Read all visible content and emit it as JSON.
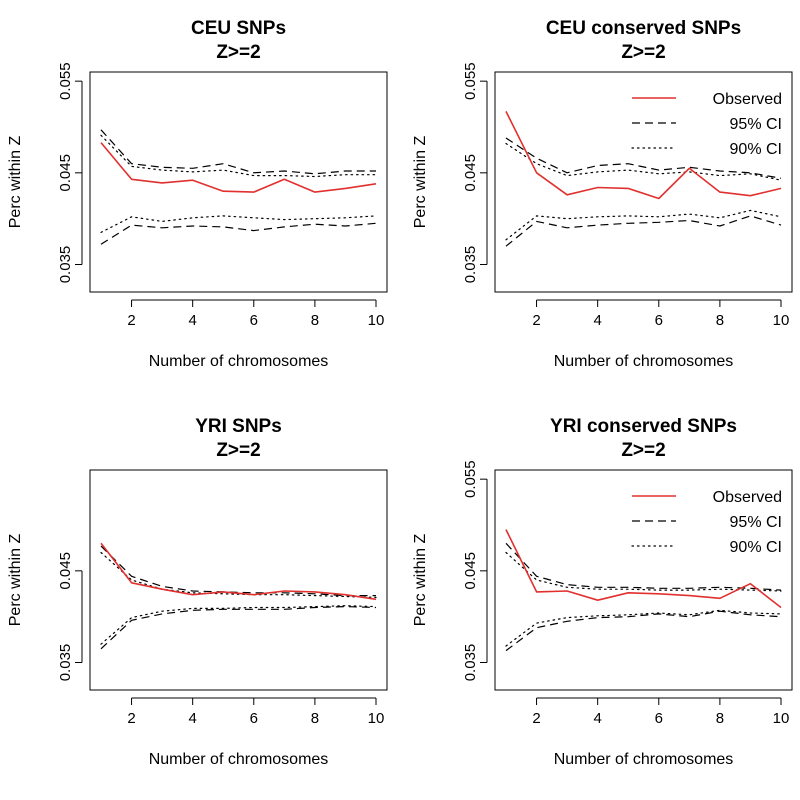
{
  "chart_data": [
    {
      "type": "line",
      "title": "CEU SNPs",
      "subtitle": "Z>=2",
      "xlabel": "Number of chromosomes",
      "ylabel": "Perc within Z",
      "xlim": [
        1,
        10
      ],
      "ylim": [
        0.032,
        0.056
      ],
      "xticks": [
        2,
        4,
        6,
        8,
        10
      ],
      "yticks": [
        0.035,
        0.045,
        0.055
      ],
      "x": [
        1,
        2,
        3,
        4,
        5,
        6,
        7,
        8,
        9,
        10
      ],
      "legend": null,
      "series": [
        {
          "name": "Observed",
          "color": "#e0312f",
          "style": "solid",
          "values": [
            0.0483,
            0.0443,
            0.0439,
            0.0442,
            0.043,
            0.0429,
            0.0443,
            0.0429,
            0.0433,
            0.0438
          ]
        },
        {
          "name": "95% CI",
          "color": "#000000",
          "style": "dashed",
          "values": [
            0.0497,
            0.046,
            0.0456,
            0.0455,
            0.046,
            0.045,
            0.0452,
            0.0449,
            0.0452,
            0.0452
          ]
        },
        {
          "name": "95% CI",
          "color": "#000000",
          "style": "dashed",
          "values": [
            0.0372,
            0.0393,
            0.039,
            0.0392,
            0.0391,
            0.0387,
            0.0391,
            0.0394,
            0.0392,
            0.0395
          ]
        },
        {
          "name": "90% CI",
          "color": "#000000",
          "style": "dotted",
          "values": [
            0.0491,
            0.0457,
            0.0453,
            0.0451,
            0.0453,
            0.0447,
            0.0447,
            0.0446,
            0.0448,
            0.0448
          ]
        },
        {
          "name": "90% CI",
          "color": "#000000",
          "style": "dotted",
          "values": [
            0.0385,
            0.0402,
            0.0397,
            0.0401,
            0.0403,
            0.0401,
            0.0399,
            0.04,
            0.0401,
            0.0403
          ]
        }
      ]
    },
    {
      "type": "line",
      "title": "CEU conserved SNPs",
      "subtitle": "Z>=2",
      "xlabel": "Number of chromosomes",
      "ylabel": "Perc within Z",
      "xlim": [
        1,
        10
      ],
      "ylim": [
        0.032,
        0.056
      ],
      "xticks": [
        2,
        4,
        6,
        8,
        10
      ],
      "yticks": [
        0.035,
        0.045,
        0.055
      ],
      "x": [
        1,
        2,
        3,
        4,
        5,
        6,
        7,
        8,
        9,
        10
      ],
      "legend": {
        "position": "top-right",
        "entries": [
          {
            "label": "Observed",
            "color": "#e0312f",
            "style": "solid"
          },
          {
            "label": "95% CI",
            "color": "#000000",
            "style": "dashed"
          },
          {
            "label": "90% CI",
            "color": "#000000",
            "style": "dotted"
          }
        ]
      },
      "series": [
        {
          "name": "Observed",
          "color": "#e0312f",
          "style": "solid",
          "values": [
            0.0517,
            0.045,
            0.0426,
            0.0434,
            0.0433,
            0.0422,
            0.0455,
            0.0429,
            0.0425,
            0.0433
          ]
        },
        {
          "name": "95% CI",
          "color": "#000000",
          "style": "dashed",
          "values": [
            0.0488,
            0.0466,
            0.045,
            0.0458,
            0.046,
            0.0453,
            0.0456,
            0.0452,
            0.045,
            0.0444
          ]
        },
        {
          "name": "95% CI",
          "color": "#000000",
          "style": "dashed",
          "values": [
            0.037,
            0.0397,
            0.039,
            0.0393,
            0.0395,
            0.0396,
            0.0398,
            0.0392,
            0.0403,
            0.0393
          ]
        },
        {
          "name": "90% CI",
          "color": "#000000",
          "style": "dotted",
          "values": [
            0.0482,
            0.046,
            0.0447,
            0.0451,
            0.0453,
            0.0449,
            0.0451,
            0.0447,
            0.0449,
            0.0442
          ]
        },
        {
          "name": "90% CI",
          "color": "#000000",
          "style": "dotted",
          "values": [
            0.0377,
            0.0403,
            0.04,
            0.0402,
            0.0403,
            0.0402,
            0.0405,
            0.0401,
            0.0409,
            0.0402
          ]
        }
      ]
    },
    {
      "type": "line",
      "title": "YRI SNPs",
      "subtitle": "Z>=2",
      "xlabel": "Number of chromosomes",
      "ylabel": "Perc within Z",
      "xlim": [
        1,
        10
      ],
      "ylim": [
        0.032,
        0.056
      ],
      "xticks": [
        2,
        4,
        6,
        8,
        10
      ],
      "yticks": [
        0.035,
        0.045
      ],
      "x": [
        1,
        2,
        3,
        4,
        5,
        6,
        7,
        8,
        9,
        10
      ],
      "legend": null,
      "series": [
        {
          "name": "Observed",
          "color": "#e0312f",
          "style": "solid",
          "values": [
            0.048,
            0.0437,
            0.043,
            0.0424,
            0.0427,
            0.0424,
            0.0428,
            0.0427,
            0.0424,
            0.0419
          ]
        },
        {
          "name": "95% CI",
          "color": "#000000",
          "style": "dashed",
          "values": [
            0.0477,
            0.0444,
            0.0433,
            0.0428,
            0.0427,
            0.0426,
            0.0426,
            0.0425,
            0.0423,
            0.0423
          ]
        },
        {
          "name": "95% CI",
          "color": "#000000",
          "style": "dashed",
          "values": [
            0.0365,
            0.0396,
            0.0403,
            0.0407,
            0.0408,
            0.0408,
            0.0408,
            0.041,
            0.0411,
            0.041
          ]
        },
        {
          "name": "90% CI",
          "color": "#000000",
          "style": "dotted",
          "values": [
            0.047,
            0.044,
            0.043,
            0.0426,
            0.0425,
            0.0424,
            0.0424,
            0.0423,
            0.0422,
            0.0421
          ]
        },
        {
          "name": "90% CI",
          "color": "#000000",
          "style": "dotted",
          "values": [
            0.037,
            0.0399,
            0.0406,
            0.0409,
            0.0409,
            0.041,
            0.041,
            0.0411,
            0.0412,
            0.0411
          ]
        }
      ]
    },
    {
      "type": "line",
      "title": "YRI conserved SNPs",
      "subtitle": "Z>=2",
      "xlabel": "Number of chromosomes",
      "ylabel": "Perc within Z",
      "xlim": [
        1,
        10
      ],
      "ylim": [
        0.032,
        0.056
      ],
      "xticks": [
        2,
        4,
        6,
        8,
        10
      ],
      "yticks": [
        0.035,
        0.045,
        0.055
      ],
      "x": [
        1,
        2,
        3,
        4,
        5,
        6,
        7,
        8,
        9,
        10
      ],
      "legend": {
        "position": "top-right",
        "entries": [
          {
            "label": "Observed",
            "color": "#e0312f",
            "style": "solid"
          },
          {
            "label": "95% CI",
            "color": "#000000",
            "style": "dashed"
          },
          {
            "label": "90% CI",
            "color": "#000000",
            "style": "dotted"
          }
        ]
      },
      "series": [
        {
          "name": "Observed",
          "color": "#e0312f",
          "style": "solid",
          "values": [
            0.0495,
            0.0427,
            0.0428,
            0.0418,
            0.0426,
            0.0425,
            0.0423,
            0.042,
            0.0436,
            0.041
          ]
        },
        {
          "name": "95% CI",
          "color": "#000000",
          "style": "dashed",
          "values": [
            0.048,
            0.0444,
            0.0435,
            0.0432,
            0.0432,
            0.0431,
            0.0431,
            0.0432,
            0.0431,
            0.0429
          ]
        },
        {
          "name": "95% CI",
          "color": "#000000",
          "style": "dashed",
          "values": [
            0.0363,
            0.0388,
            0.0395,
            0.0399,
            0.04,
            0.0403,
            0.04,
            0.0406,
            0.0402,
            0.04
          ]
        },
        {
          "name": "90% CI",
          "color": "#000000",
          "style": "dotted",
          "values": [
            0.047,
            0.044,
            0.0432,
            0.043,
            0.043,
            0.0429,
            0.0429,
            0.043,
            0.0429,
            0.0428
          ]
        },
        {
          "name": "90% CI",
          "color": "#000000",
          "style": "dotted",
          "values": [
            0.0368,
            0.0393,
            0.0399,
            0.0401,
            0.0402,
            0.0404,
            0.0402,
            0.0407,
            0.0404,
            0.0403
          ]
        }
      ]
    }
  ]
}
